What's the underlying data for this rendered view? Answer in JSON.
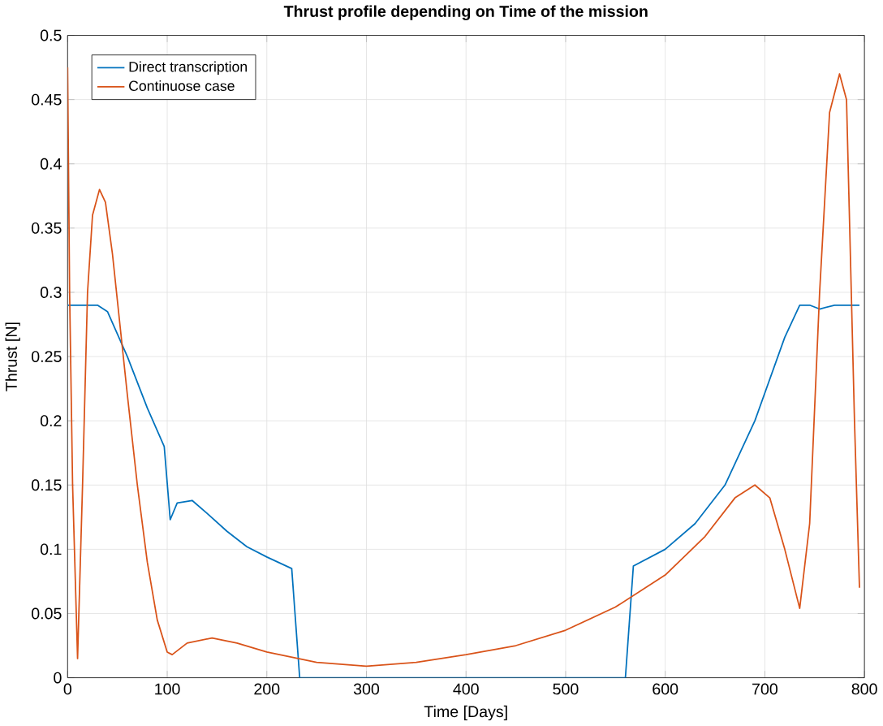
{
  "chart_data": {
    "type": "line",
    "title": "Thrust profile depending on Time of the mission",
    "xlabel": "Time [Days]",
    "ylabel": "Thrust [N]",
    "xlim": [
      0,
      800
    ],
    "ylim": [
      0,
      0.5
    ],
    "xticks": [
      0,
      100,
      200,
      300,
      400,
      500,
      600,
      700,
      800
    ],
    "yticks": [
      0,
      0.05,
      0.1,
      0.15,
      0.2,
      0.25,
      0.3,
      0.35,
      0.4,
      0.45,
      0.5
    ],
    "grid": true,
    "legend": "top left",
    "line_style": "solid",
    "marker": "none",
    "series": [
      {
        "name": "Direct transcription",
        "color": "#0072bd",
        "x": [
          0,
          30,
          40,
          60,
          80,
          97,
          103,
          110,
          125,
          140,
          160,
          180,
          200,
          225,
          233,
          560,
          568,
          600,
          630,
          660,
          690,
          720,
          735,
          745,
          755,
          770,
          795
        ],
        "values": [
          0.29,
          0.29,
          0.285,
          0.25,
          0.21,
          0.18,
          0.123,
          0.136,
          0.138,
          0.128,
          0.114,
          0.102,
          0.094,
          0.085,
          0,
          0,
          0.087,
          0.1,
          0.12,
          0.15,
          0.2,
          0.265,
          0.29,
          0.29,
          0.287,
          0.29,
          0.29
        ]
      },
      {
        "name": "Continuose case",
        "color": "#d95319",
        "x": [
          0,
          2,
          5,
          10,
          15,
          20,
          25,
          32,
          38,
          45,
          60,
          70,
          80,
          90,
          100,
          105,
          120,
          145,
          170,
          200,
          250,
          300,
          350,
          400,
          450,
          500,
          550,
          600,
          640,
          670,
          690,
          705,
          720,
          735,
          745,
          755,
          765,
          775,
          782,
          790,
          795
        ],
        "values": [
          0.475,
          0.3,
          0.15,
          0.015,
          0.15,
          0.3,
          0.36,
          0.38,
          0.37,
          0.33,
          0.22,
          0.15,
          0.09,
          0.045,
          0.02,
          0.018,
          0.027,
          0.031,
          0.027,
          0.02,
          0.012,
          0.009,
          0.012,
          0.018,
          0.025,
          0.037,
          0.055,
          0.08,
          0.11,
          0.14,
          0.15,
          0.14,
          0.1,
          0.054,
          0.12,
          0.3,
          0.44,
          0.47,
          0.45,
          0.2,
          0.07
        ]
      }
    ]
  }
}
